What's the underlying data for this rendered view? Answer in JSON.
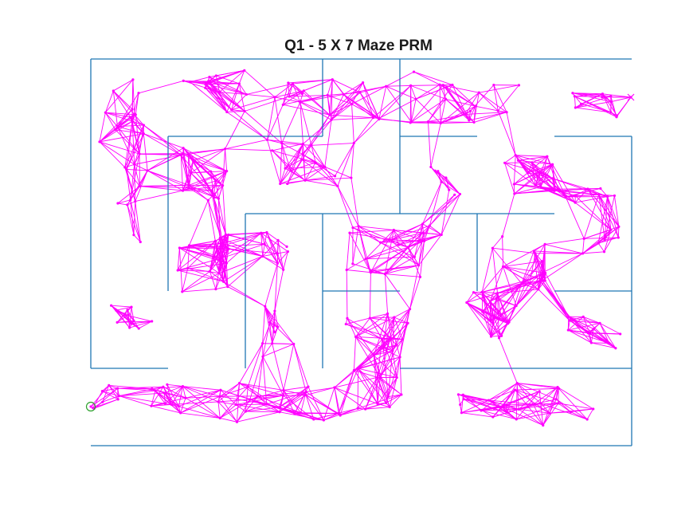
{
  "title": "Q1 - 5 X 7 Maze PRM",
  "colors": {
    "background": "#ffffff",
    "maze_walls": "#1f77b4",
    "roadmap": "#ff00ff",
    "start_marker": "#2ca02c",
    "goal_marker": "#ff00ff"
  },
  "maze": {
    "rows": 5,
    "cols": 7
  },
  "icons": {
    "start": "circle-marker",
    "goal": "x-marker"
  }
}
